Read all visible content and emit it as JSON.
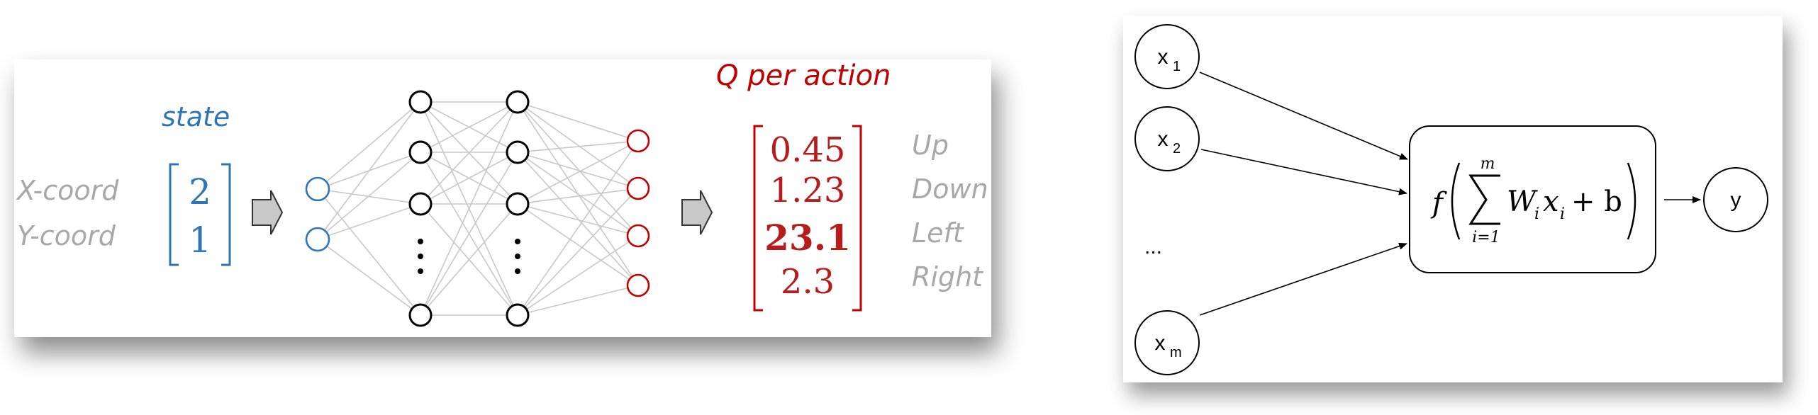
{
  "left_diagram": {
    "input_title": "state",
    "output_title": "Q per action",
    "input_labels": [
      "X-coord",
      "Y-coord"
    ],
    "input_values": [
      "2",
      "1"
    ],
    "output_values": [
      "0.45",
      "1.23",
      "23.1",
      "2.3"
    ],
    "output_labels": [
      "Up",
      "Down",
      "Left",
      "Right"
    ],
    "colors": {
      "input": "#2e75b6",
      "output": "#c00000",
      "label": "#a8a8a8"
    }
  },
  "right_diagram": {
    "inputs": [
      {
        "base": "x",
        "sub": "1"
      },
      {
        "base": "x",
        "sub": "2"
      },
      {
        "base": "x",
        "sub": "m"
      }
    ],
    "ellipsis": "...",
    "output": "y",
    "formula": {
      "f": "f",
      "sum_upper": "m",
      "sum_lower": "i=1",
      "term": "W",
      "term_sub": "i",
      "var": "x",
      "var_sub": "i",
      "plus_b": "+ b"
    }
  }
}
